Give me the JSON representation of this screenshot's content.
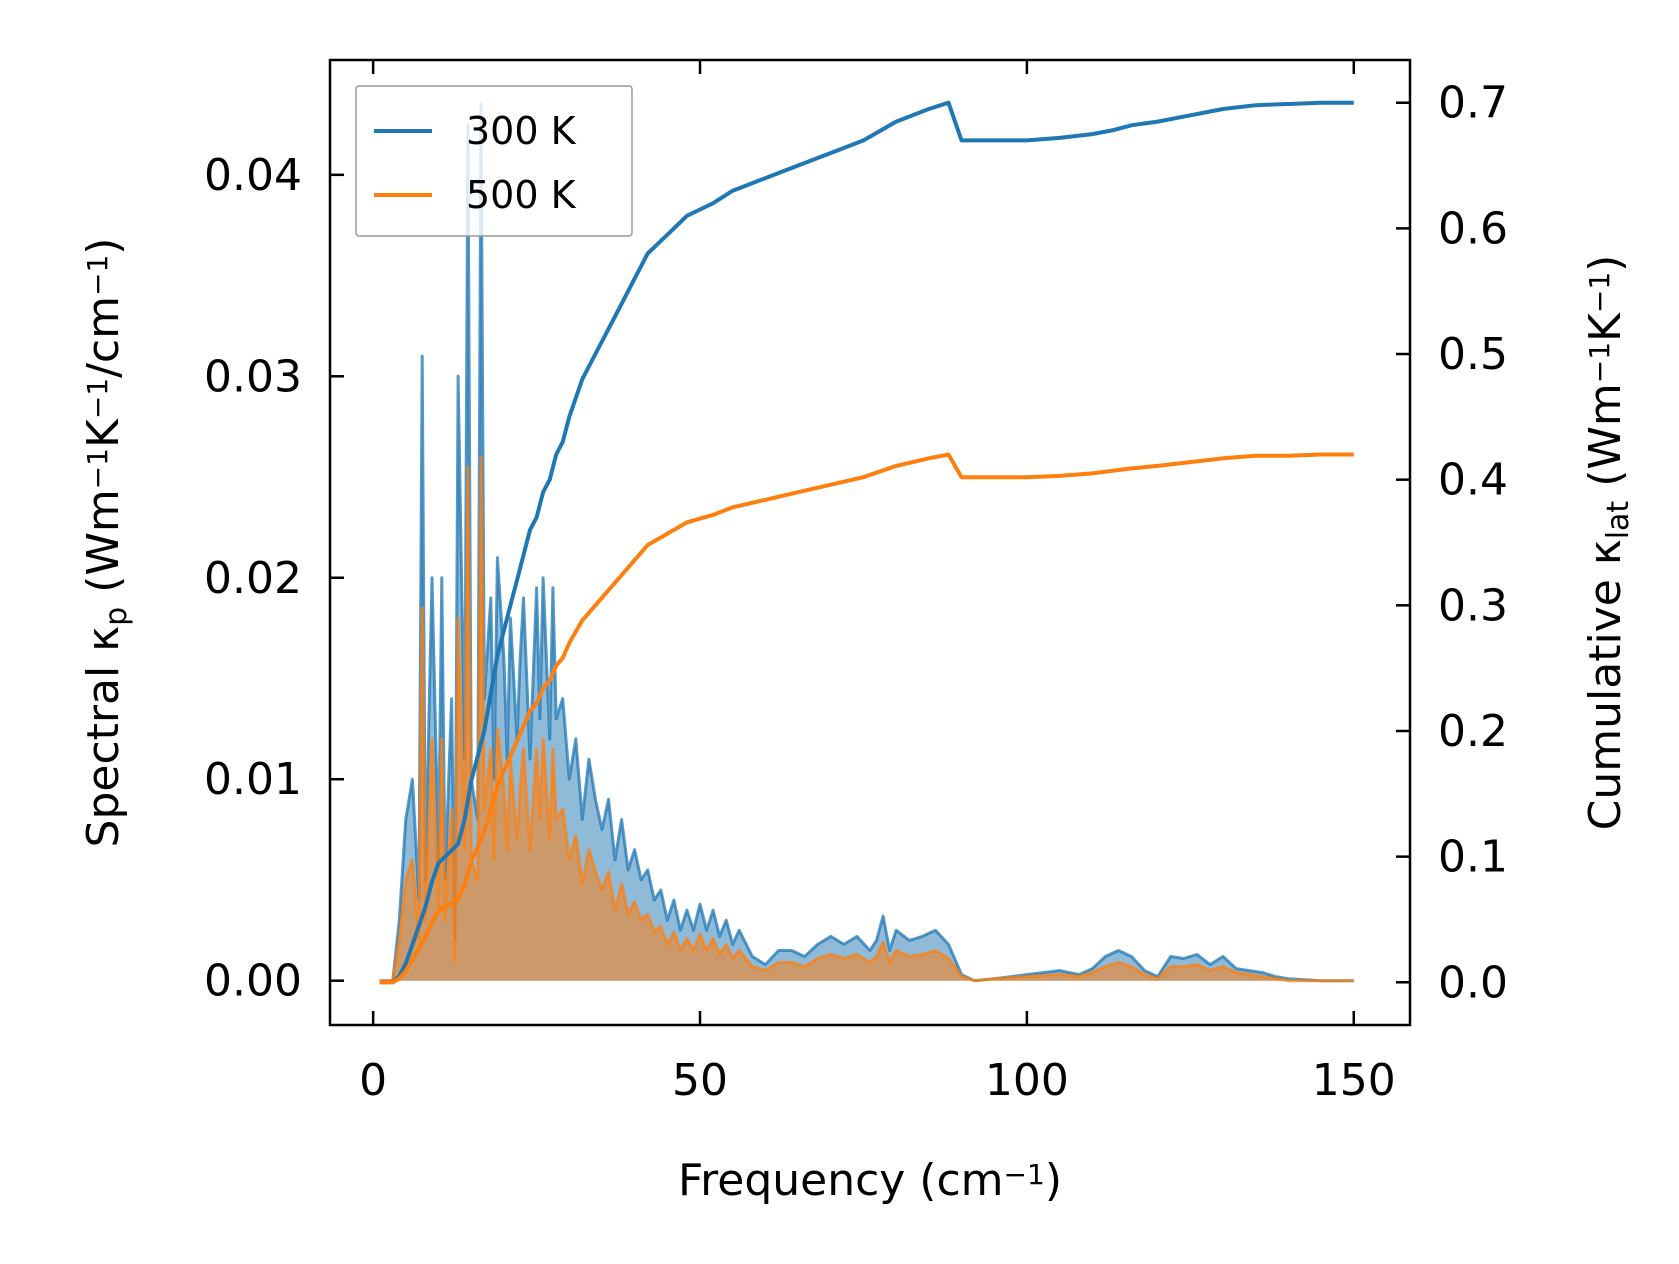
{
  "chart_data": {
    "type": "line",
    "x_axis": {
      "label": "Frequency (cm",
      "label_sup": "−1",
      "label_end": ")",
      "range": [
        -6.6,
        158.6
      ],
      "ticks": [
        0,
        50,
        100,
        150
      ],
      "tick_labels": [
        "0",
        "50",
        "100",
        "150"
      ]
    },
    "y_left": {
      "label_parts": [
        "Spectral κ",
        "p",
        " (Wm",
        "−1",
        "K",
        "−1",
        "/cm",
        "−1",
        ")"
      ],
      "range": [
        -0.0022,
        0.0457
      ],
      "ticks": [
        0.0,
        0.01,
        0.02,
        0.03,
        0.04
      ],
      "tick_labels": [
        "0.00",
        "0.01",
        "0.02",
        "0.03",
        "0.04"
      ]
    },
    "y_right": {
      "label_parts": [
        "Cumulative κ",
        "lat",
        " (Wm",
        "−1",
        "K",
        "−1",
        ")"
      ],
      "range": [
        -0.034,
        0.734
      ],
      "ticks": [
        0.0,
        0.1,
        0.2,
        0.3,
        0.4,
        0.5,
        0.6,
        0.7
      ],
      "tick_labels": [
        "0.0",
        "0.1",
        "0.2",
        "0.3",
        "0.4",
        "0.5",
        "0.6",
        "0.7"
      ]
    },
    "legend": {
      "position": "top-left",
      "entries": [
        "300 K",
        "500 K"
      ]
    },
    "series": [
      {
        "name": "300 K",
        "color": "#1f77b4",
        "spectral_x": [
          1,
          2,
          3,
          4,
          5,
          6,
          7,
          7.5,
          8,
          9,
          10,
          10.5,
          11,
          12,
          12.5,
          13,
          14,
          14.5,
          15,
          16,
          16.5,
          17,
          18,
          18.5,
          19,
          20,
          20.5,
          21,
          22,
          22.5,
          23,
          24,
          25,
          25.5,
          26,
          27,
          27.5,
          28,
          29,
          30,
          31,
          32,
          33,
          34,
          35,
          36,
          37,
          38,
          39,
          40,
          41,
          42,
          43,
          44,
          45,
          46,
          47,
          48,
          49,
          50,
          51,
          52,
          53,
          54,
          55,
          56,
          58,
          60,
          62,
          64,
          66,
          68,
          70,
          72,
          74,
          76,
          77,
          78,
          79,
          80,
          82,
          84,
          86,
          88,
          90,
          92,
          95,
          100,
          105,
          108,
          110,
          112,
          114,
          116,
          118,
          120,
          122,
          124,
          126,
          128,
          130,
          132,
          134,
          136,
          138,
          140,
          145,
          150
        ],
        "spectral_y": [
          0.0,
          0.0,
          0.0,
          0.003,
          0.008,
          0.01,
          0.004,
          0.031,
          0.005,
          0.02,
          0.006,
          0.02,
          0.005,
          0.014,
          0.002,
          0.03,
          0.011,
          0.0425,
          0.01,
          0.008,
          0.0435,
          0.014,
          0.019,
          0.01,
          0.021,
          0.016,
          0.011,
          0.018,
          0.012,
          0.016,
          0.019,
          0.011,
          0.0195,
          0.013,
          0.02,
          0.012,
          0.0195,
          0.013,
          0.014,
          0.01,
          0.012,
          0.008,
          0.011,
          0.009,
          0.0075,
          0.009,
          0.006,
          0.008,
          0.0055,
          0.0065,
          0.005,
          0.0055,
          0.004,
          0.0045,
          0.003,
          0.004,
          0.0025,
          0.0035,
          0.0025,
          0.0038,
          0.0025,
          0.0035,
          0.0022,
          0.003,
          0.0018,
          0.0025,
          0.0012,
          0.0008,
          0.0015,
          0.0015,
          0.0012,
          0.0018,
          0.0022,
          0.0018,
          0.0022,
          0.0015,
          0.002,
          0.0032,
          0.0015,
          0.0025,
          0.002,
          0.0022,
          0.0025,
          0.0018,
          0.0003,
          0.0,
          0.0001,
          0.0003,
          0.0005,
          0.0003,
          0.0006,
          0.0012,
          0.0015,
          0.0012,
          0.0005,
          0.0002,
          0.0012,
          0.0011,
          0.0013,
          0.0008,
          0.0012,
          0.0006,
          0.0005,
          0.0004,
          0.0002,
          0.0001,
          0.0,
          0.0
        ],
        "cumulative_x": [
          1,
          2,
          3,
          4,
          5,
          6,
          7,
          8,
          9,
          10,
          11,
          12,
          13,
          14,
          15,
          16,
          17,
          18,
          19,
          20,
          21,
          22,
          23,
          24,
          25,
          26,
          27,
          28,
          29,
          30,
          32,
          34,
          36,
          38,
          40,
          42,
          44,
          46,
          48,
          50,
          52,
          55,
          60,
          65,
          70,
          75,
          80,
          85,
          88,
          90,
          95,
          100,
          105,
          110,
          113,
          116,
          120,
          125,
          130,
          135,
          140,
          145,
          150
        ],
        "cumulative_y": [
          0.0,
          0.0,
          0.0,
          0.005,
          0.015,
          0.03,
          0.045,
          0.06,
          0.08,
          0.095,
          0.1,
          0.105,
          0.11,
          0.13,
          0.16,
          0.18,
          0.2,
          0.23,
          0.26,
          0.28,
          0.3,
          0.32,
          0.34,
          0.36,
          0.37,
          0.39,
          0.4,
          0.42,
          0.43,
          0.45,
          0.48,
          0.5,
          0.52,
          0.54,
          0.56,
          0.58,
          0.59,
          0.6,
          0.61,
          0.615,
          0.62,
          0.63,
          0.64,
          0.65,
          0.66,
          0.67,
          0.685,
          0.695,
          0.7,
          0.67,
          0.67,
          0.67,
          0.672,
          0.675,
          0.678,
          0.682,
          0.685,
          0.69,
          0.695,
          0.698,
          0.699,
          0.7,
          0.7
        ]
      },
      {
        "name": "500 K",
        "color": "#ff7f0e",
        "spectral_x": [
          1,
          2,
          3,
          4,
          5,
          6,
          7,
          7.5,
          8,
          9,
          10,
          10.5,
          11,
          12,
          12.5,
          13,
          14,
          14.5,
          15,
          16,
          16.5,
          17,
          18,
          18.5,
          19,
          20,
          20.5,
          21,
          22,
          22.5,
          23,
          24,
          25,
          25.5,
          26,
          27,
          27.5,
          28,
          29,
          30,
          31,
          32,
          33,
          34,
          35,
          36,
          37,
          38,
          39,
          40,
          41,
          42,
          43,
          44,
          45,
          46,
          47,
          48,
          49,
          50,
          51,
          52,
          53,
          54,
          55,
          56,
          58,
          60,
          62,
          64,
          66,
          68,
          70,
          72,
          74,
          76,
          77,
          78,
          79,
          80,
          82,
          84,
          86,
          88,
          90,
          92,
          95,
          100,
          105,
          108,
          110,
          112,
          114,
          116,
          118,
          120,
          122,
          124,
          126,
          128,
          130,
          132,
          134,
          136,
          138,
          140,
          145,
          150
        ],
        "spectral_y": [
          0.0,
          0.0,
          0.0,
          0.002,
          0.005,
          0.006,
          0.002,
          0.0185,
          0.003,
          0.012,
          0.0035,
          0.012,
          0.003,
          0.0085,
          0.001,
          0.018,
          0.0065,
          0.0255,
          0.006,
          0.005,
          0.026,
          0.0085,
          0.0115,
          0.006,
          0.0125,
          0.0095,
          0.0065,
          0.011,
          0.007,
          0.0095,
          0.0115,
          0.0065,
          0.0115,
          0.008,
          0.012,
          0.007,
          0.0115,
          0.008,
          0.0085,
          0.006,
          0.0072,
          0.0048,
          0.0065,
          0.0054,
          0.0045,
          0.0054,
          0.0035,
          0.0048,
          0.0033,
          0.0039,
          0.003,
          0.0033,
          0.0024,
          0.0027,
          0.0018,
          0.0024,
          0.0015,
          0.0021,
          0.0015,
          0.0023,
          0.0015,
          0.0021,
          0.0013,
          0.0018,
          0.0011,
          0.0015,
          0.0007,
          0.0005,
          0.0009,
          0.0009,
          0.0007,
          0.0011,
          0.0013,
          0.0011,
          0.0013,
          0.0009,
          0.0012,
          0.0019,
          0.0009,
          0.0015,
          0.0012,
          0.0013,
          0.0015,
          0.0011,
          0.0002,
          0.0,
          0.0001,
          0.0002,
          0.0003,
          0.0002,
          0.0004,
          0.0007,
          0.0009,
          0.0007,
          0.0003,
          0.0001,
          0.0007,
          0.0007,
          0.0008,
          0.0005,
          0.0007,
          0.0004,
          0.0003,
          0.0002,
          0.0001,
          0.0,
          0.0,
          0.0
        ],
        "cumulative_x": [
          1,
          2,
          3,
          4,
          5,
          6,
          7,
          8,
          9,
          10,
          11,
          12,
          13,
          14,
          15,
          16,
          17,
          18,
          19,
          20,
          21,
          22,
          23,
          24,
          25,
          26,
          27,
          28,
          29,
          30,
          32,
          34,
          36,
          38,
          40,
          42,
          44,
          46,
          48,
          50,
          52,
          55,
          60,
          65,
          70,
          75,
          80,
          85,
          88,
          90,
          95,
          100,
          105,
          110,
          113,
          116,
          120,
          125,
          130,
          135,
          140,
          145,
          150
        ],
        "cumulative_y": [
          0.0,
          0.0,
          0.0,
          0.003,
          0.009,
          0.018,
          0.027,
          0.036,
          0.048,
          0.057,
          0.06,
          0.063,
          0.066,
          0.078,
          0.096,
          0.108,
          0.12,
          0.138,
          0.156,
          0.168,
          0.18,
          0.192,
          0.204,
          0.216,
          0.222,
          0.234,
          0.24,
          0.252,
          0.258,
          0.27,
          0.288,
          0.3,
          0.312,
          0.324,
          0.336,
          0.348,
          0.354,
          0.36,
          0.366,
          0.369,
          0.372,
          0.378,
          0.384,
          0.39,
          0.396,
          0.402,
          0.411,
          0.417,
          0.42,
          0.402,
          0.402,
          0.402,
          0.403,
          0.405,
          0.407,
          0.409,
          0.411,
          0.414,
          0.417,
          0.419,
          0.419,
          0.42,
          0.42
        ]
      }
    ]
  }
}
